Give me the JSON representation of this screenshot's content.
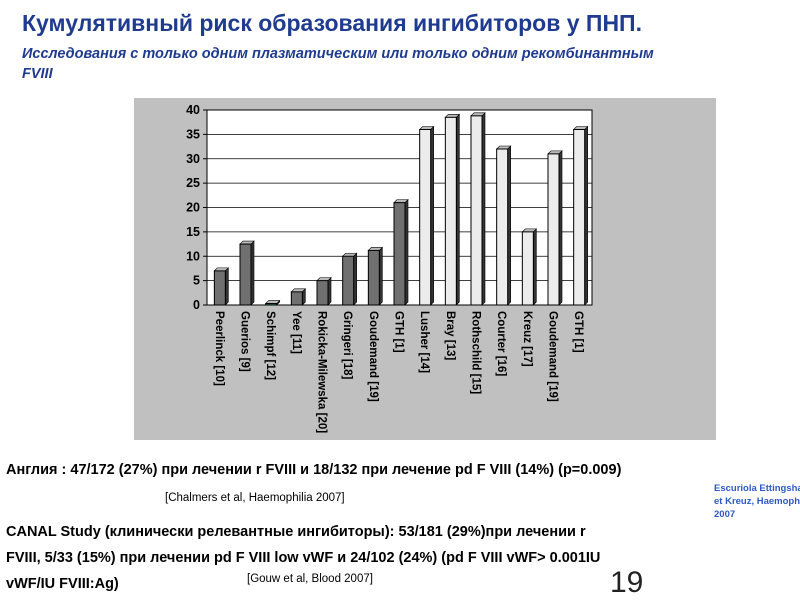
{
  "slide": {
    "title": "Кумулятивный риск образования ингибиторов у ПНП.",
    "subtitle": "Исследования с только одним плазматическим или только одним рекомбинантным FVIII",
    "citation_lines": [
      "Escuriola Ettingshausen",
      "et Kreuz,       Haemophilia",
      "2007"
    ],
    "england_text": "Англия : 47/172 (27%) при лечении r FVIII и 18/132 при лечение pd F VIII (14%) (p=0.009)",
    "england_ref": "[Chalmers et al, Haemophilia 2007]",
    "canal_lines": [
      "CANAL Study (клинически релевантные ингибиторы): 53/181 (29%)при лечении r",
      "FVIII, 5/33 (15%) при лечении pd F VIII low vWF и 24/102 (24%) (pd F VIII vWF> 0.001IU",
      "vWF/IU FVIII:Ag)"
    ],
    "canal_ref": "[Gouw et al, Blood 2007]",
    "page_number": "19"
  },
  "chart_data": {
    "type": "bar",
    "categories": [
      "Peerlinck [10]",
      "Guerios [9]",
      "Schimpf [12]",
      "Yee [11]",
      "Rokicka-Milewska [20]",
      "Gringeri [18]",
      "Goudemand [19]",
      "GTH [1]",
      "Lusher [14]",
      "Bray [13]",
      "Rothschild [15]",
      "Courter [16]",
      "Kreuz [17]",
      "Goudemand [19]",
      "GTH [1]"
    ],
    "values": [
      7,
      12.5,
      0.3,
      2.7,
      5,
      10,
      11.2,
      21,
      36,
      38.5,
      38.8,
      32,
      15,
      31,
      36
    ],
    "groups": [
      "plasma",
      "plasma",
      "plasma",
      "plasma",
      "plasma",
      "plasma",
      "plasma",
      "plasma",
      "recombinant",
      "recombinant",
      "recombinant",
      "recombinant",
      "recombinant",
      "recombinant",
      "recombinant"
    ],
    "ylim": [
      0,
      40
    ],
    "yticks": [
      "0",
      "5",
      "10",
      "15",
      "20",
      "25",
      "30",
      "35",
      "40"
    ],
    "grid": true,
    "colors": {
      "plasma": "#707070",
      "recombinant": "#ececec",
      "special_bar": "#2e8b57",
      "panel": "#c0c0c0",
      "plot_bg": "#ffffff",
      "title": "#1f3b8f",
      "citation": "#2f59c4"
    }
  }
}
